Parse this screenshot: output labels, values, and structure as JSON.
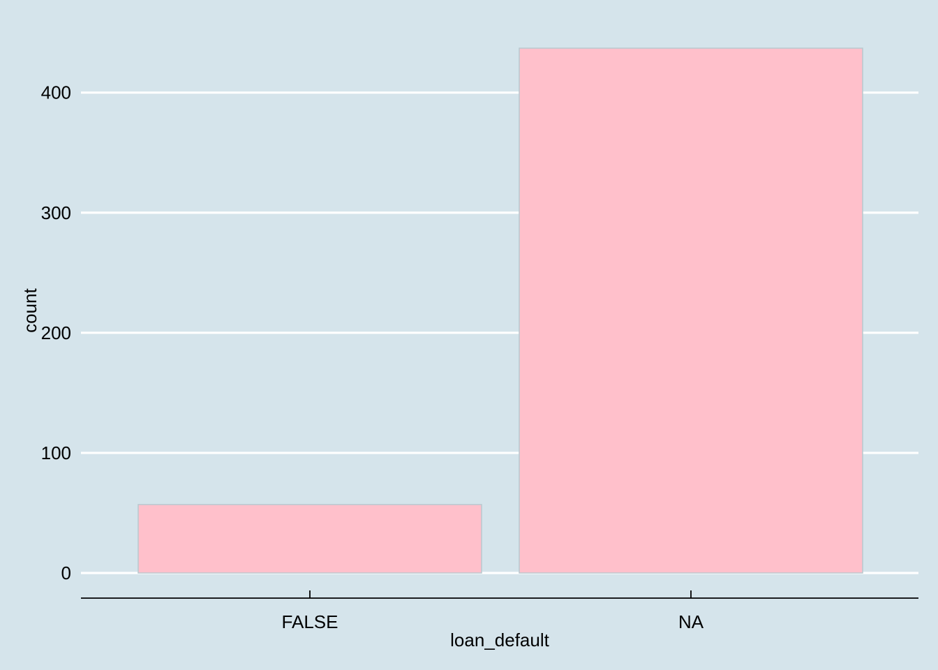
{
  "chart_data": {
    "type": "bar",
    "categories": [
      "FALSE",
      "NA"
    ],
    "values": [
      57,
      437
    ],
    "xlabel": "loan_default",
    "ylabel": "count",
    "ylim": [
      0,
      437
    ],
    "yticks": [
      0,
      100,
      200,
      300,
      400
    ],
    "ytick_labels": [
      "0",
      "100",
      "200",
      "300",
      "400"
    ],
    "grid": "horizontal major lines",
    "legend": "none",
    "colors": {
      "background": "#d5e4eb",
      "bar_fill": "#ffc0cb",
      "bar_stroke": "#b8c9cf",
      "grid": "#ffffff",
      "axis": "#000000"
    }
  }
}
